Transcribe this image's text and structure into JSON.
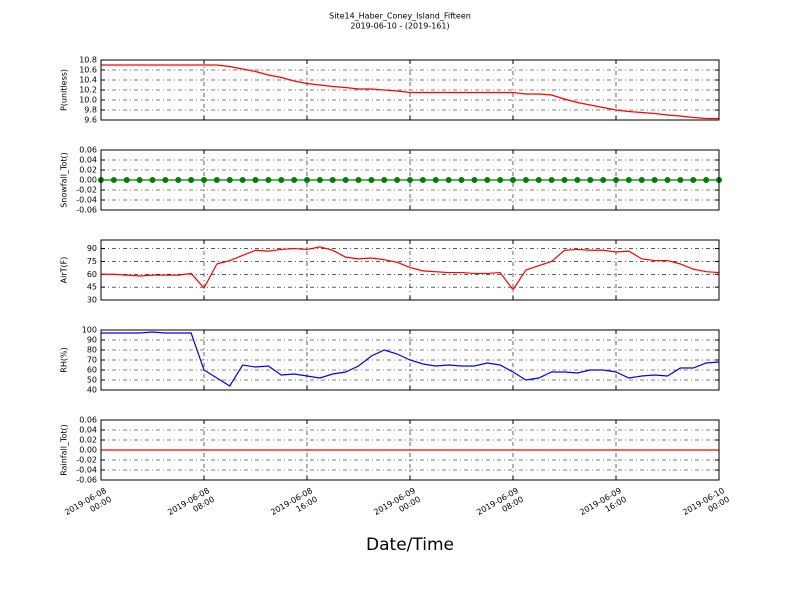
{
  "title": "Site14_Haber_Coney_Island_Fifteen",
  "subtitle": "2019-06-10 - (2019-161)",
  "xlabel": "Date/Time",
  "chart_data": [
    {
      "type": "line",
      "ylabel": "P(unitless)",
      "grid": true,
      "x": [
        "2019-06-08 00:00",
        "2019-06-08 01:00",
        "2019-06-08 02:00",
        "2019-06-08 03:00",
        "2019-06-08 04:00",
        "2019-06-08 05:00",
        "2019-06-08 06:00",
        "2019-06-08 07:00",
        "2019-06-08 08:00",
        "2019-06-08 09:00",
        "2019-06-08 10:00",
        "2019-06-08 11:00",
        "2019-06-08 12:00",
        "2019-06-08 13:00",
        "2019-06-08 14:00",
        "2019-06-08 15:00",
        "2019-06-08 16:00",
        "2019-06-08 17:00",
        "2019-06-08 18:00",
        "2019-06-08 19:00",
        "2019-06-08 20:00",
        "2019-06-08 21:00",
        "2019-06-08 22:00",
        "2019-06-08 23:00",
        "2019-06-09 00:00",
        "2019-06-09 01:00",
        "2019-06-09 02:00",
        "2019-06-09 03:00",
        "2019-06-09 04:00",
        "2019-06-09 05:00",
        "2019-06-09 06:00",
        "2019-06-09 07:00",
        "2019-06-09 08:00",
        "2019-06-09 09:00",
        "2019-06-09 10:00",
        "2019-06-09 11:00",
        "2019-06-09 12:00",
        "2019-06-09 13:00",
        "2019-06-09 14:00",
        "2019-06-09 15:00",
        "2019-06-09 16:00",
        "2019-06-09 17:00",
        "2019-06-09 18:00",
        "2019-06-09 19:00",
        "2019-06-09 20:00",
        "2019-06-09 21:00",
        "2019-06-09 22:00",
        "2019-06-09 23:00",
        "2019-06-10 00:00"
      ],
      "series": [
        {
          "color": "#ff0000",
          "values": [
            10.7,
            10.7,
            10.7,
            10.7,
            10.7,
            10.7,
            10.7,
            10.7,
            10.7,
            10.7,
            10.67,
            10.62,
            10.57,
            10.5,
            10.45,
            10.38,
            10.33,
            10.3,
            10.27,
            10.25,
            10.22,
            10.22,
            10.2,
            10.18,
            10.15,
            10.15,
            10.15,
            10.15,
            10.15,
            10.15,
            10.15,
            10.15,
            10.15,
            10.12,
            10.12,
            10.1,
            10.02,
            9.95,
            9.9,
            9.85,
            9.8,
            9.77,
            9.75,
            9.73,
            9.7,
            9.68,
            9.65,
            9.63,
            9.63
          ]
        }
      ],
      "xlim": [
        "2019-06-08 00:00",
        "2019-06-10 00:00"
      ],
      "xticks": [
        "2019-06-08 00:00",
        "2019-06-08 08:00",
        "2019-06-08 16:00",
        "2019-06-09 00:00",
        "2019-06-09 08:00",
        "2019-06-09 16:00",
        "2019-06-10 00:00"
      ],
      "ylim": [
        9.6,
        10.8
      ],
      "yticks": [
        9.6,
        9.8,
        {
          "value": 10,
          "label": "10.0"
        },
        10.2,
        10.4,
        10.6,
        10.8
      ]
    },
    {
      "type": "line",
      "ylabel": "Snowfall_Tot()",
      "grid": true,
      "marker": "circle",
      "x": [
        "2019-06-08 00:00",
        "2019-06-08 01:00",
        "2019-06-08 02:00",
        "2019-06-08 03:00",
        "2019-06-08 04:00",
        "2019-06-08 05:00",
        "2019-06-08 06:00",
        "2019-06-08 07:00",
        "2019-06-08 08:00",
        "2019-06-08 09:00",
        "2019-06-08 10:00",
        "2019-06-08 11:00",
        "2019-06-08 12:00",
        "2019-06-08 13:00",
        "2019-06-08 14:00",
        "2019-06-08 15:00",
        "2019-06-08 16:00",
        "2019-06-08 17:00",
        "2019-06-08 18:00",
        "2019-06-08 19:00",
        "2019-06-08 20:00",
        "2019-06-08 21:00",
        "2019-06-08 22:00",
        "2019-06-08 23:00",
        "2019-06-09 00:00",
        "2019-06-09 01:00",
        "2019-06-09 02:00",
        "2019-06-09 03:00",
        "2019-06-09 04:00",
        "2019-06-09 05:00",
        "2019-06-09 06:00",
        "2019-06-09 07:00",
        "2019-06-09 08:00",
        "2019-06-09 09:00",
        "2019-06-09 10:00",
        "2019-06-09 11:00",
        "2019-06-09 12:00",
        "2019-06-09 13:00",
        "2019-06-09 14:00",
        "2019-06-09 15:00",
        "2019-06-09 16:00",
        "2019-06-09 17:00",
        "2019-06-09 18:00",
        "2019-06-09 19:00",
        "2019-06-09 20:00",
        "2019-06-09 21:00",
        "2019-06-09 22:00",
        "2019-06-09 23:00",
        "2019-06-10 00:00"
      ],
      "series": [
        {
          "color": "#007f00",
          "values": [
            0,
            0,
            0,
            0,
            0,
            0,
            0,
            0,
            0,
            0,
            0,
            0,
            0,
            0,
            0,
            0,
            0,
            0,
            0,
            0,
            0,
            0,
            0,
            0,
            0,
            0,
            0,
            0,
            0,
            0,
            0,
            0,
            0,
            0,
            0,
            0,
            0,
            0,
            0,
            0,
            0,
            0,
            0,
            0,
            0,
            0,
            0,
            0,
            0
          ]
        }
      ],
      "xlim": [
        "2019-06-08 00:00",
        "2019-06-10 00:00"
      ],
      "xticks": [
        "2019-06-08 00:00",
        "2019-06-08 08:00",
        "2019-06-08 16:00",
        "2019-06-09 00:00",
        "2019-06-09 08:00",
        "2019-06-09 16:00",
        "2019-06-10 00:00"
      ],
      "ylim": [
        -0.06,
        0.06
      ],
      "yticks": [
        -0.06,
        -0.04,
        -0.02,
        {
          "value": 0,
          "label": "0.00"
        },
        0.02,
        0.04,
        0.06
      ]
    },
    {
      "type": "line",
      "ylabel": "AirT(F)",
      "grid": true,
      "x": [
        "2019-06-08 00:00",
        "2019-06-08 01:00",
        "2019-06-08 02:00",
        "2019-06-08 03:00",
        "2019-06-08 04:00",
        "2019-06-08 05:00",
        "2019-06-08 06:00",
        "2019-06-08 07:00",
        "2019-06-08 08:00",
        "2019-06-08 09:00",
        "2019-06-08 10:00",
        "2019-06-08 11:00",
        "2019-06-08 12:00",
        "2019-06-08 13:00",
        "2019-06-08 14:00",
        "2019-06-08 15:00",
        "2019-06-08 16:00",
        "2019-06-08 17:00",
        "2019-06-08 18:00",
        "2019-06-08 19:00",
        "2019-06-08 20:00",
        "2019-06-08 21:00",
        "2019-06-08 22:00",
        "2019-06-08 23:00",
        "2019-06-09 00:00",
        "2019-06-09 01:00",
        "2019-06-09 02:00",
        "2019-06-09 03:00",
        "2019-06-09 04:00",
        "2019-06-09 05:00",
        "2019-06-09 06:00",
        "2019-06-09 07:00",
        "2019-06-09 08:00",
        "2019-06-09 09:00",
        "2019-06-09 10:00",
        "2019-06-09 11:00",
        "2019-06-09 12:00",
        "2019-06-09 13:00",
        "2019-06-09 14:00",
        "2019-06-09 15:00",
        "2019-06-09 16:00",
        "2019-06-09 17:00",
        "2019-06-09 18:00",
        "2019-06-09 19:00",
        "2019-06-09 20:00",
        "2019-06-09 21:00",
        "2019-06-09 22:00",
        "2019-06-09 23:00",
        "2019-06-10 00:00"
      ],
      "series": [
        {
          "color": "#ff0000",
          "values": [
            60,
            60,
            59,
            58,
            59,
            59,
            59,
            61,
            44,
            72,
            76,
            82,
            88,
            87,
            89,
            90,
            89,
            92,
            88,
            80,
            78,
            79,
            77,
            74,
            68,
            64,
            63,
            62,
            62,
            61,
            61,
            62,
            42,
            65,
            70,
            75,
            88,
            89,
            88,
            88,
            86,
            87,
            78,
            76,
            76,
            72,
            66,
            63,
            62
          ]
        }
      ],
      "xlim": [
        "2019-06-08 00:00",
        "2019-06-10 00:00"
      ],
      "xticks": [
        "2019-06-08 00:00",
        "2019-06-08 08:00",
        "2019-06-08 16:00",
        "2019-06-09 00:00",
        "2019-06-09 08:00",
        "2019-06-09 16:00",
        "2019-06-10 00:00"
      ],
      "ylim": [
        30,
        100
      ],
      "yticks": [
        30,
        45,
        60,
        75,
        90
      ]
    },
    {
      "type": "line",
      "ylabel": "RH(%)",
      "grid": true,
      "x": [
        "2019-06-08 00:00",
        "2019-06-08 01:00",
        "2019-06-08 02:00",
        "2019-06-08 03:00",
        "2019-06-08 04:00",
        "2019-06-08 05:00",
        "2019-06-08 06:00",
        "2019-06-08 07:00",
        "2019-06-08 08:00",
        "2019-06-08 09:00",
        "2019-06-08 10:00",
        "2019-06-08 11:00",
        "2019-06-08 12:00",
        "2019-06-08 13:00",
        "2019-06-08 14:00",
        "2019-06-08 15:00",
        "2019-06-08 16:00",
        "2019-06-08 17:00",
        "2019-06-08 18:00",
        "2019-06-08 19:00",
        "2019-06-08 20:00",
        "2019-06-08 21:00",
        "2019-06-08 22:00",
        "2019-06-08 23:00",
        "2019-06-09 00:00",
        "2019-06-09 01:00",
        "2019-06-09 02:00",
        "2019-06-09 03:00",
        "2019-06-09 04:00",
        "2019-06-09 05:00",
        "2019-06-09 06:00",
        "2019-06-09 07:00",
        "2019-06-09 08:00",
        "2019-06-09 09:00",
        "2019-06-09 10:00",
        "2019-06-09 11:00",
        "2019-06-09 12:00",
        "2019-06-09 13:00",
        "2019-06-09 14:00",
        "2019-06-09 15:00",
        "2019-06-09 16:00",
        "2019-06-09 17:00",
        "2019-06-09 18:00",
        "2019-06-09 19:00",
        "2019-06-09 20:00",
        "2019-06-09 21:00",
        "2019-06-09 22:00",
        "2019-06-09 23:00",
        "2019-06-10 00:00"
      ],
      "series": [
        {
          "color": "#0000ff",
          "values": [
            97,
            97,
            97,
            97,
            98,
            97,
            97,
            97,
            60,
            52,
            44,
            65,
            63,
            64,
            55,
            56,
            54,
            52,
            56,
            58,
            64,
            74,
            80,
            76,
            70,
            66,
            64,
            65,
            64,
            64,
            67,
            65,
            58,
            50,
            52,
            58,
            58,
            57,
            60,
            60,
            58,
            52,
            54,
            55,
            54,
            62,
            62,
            67,
            68
          ]
        }
      ],
      "xlim": [
        "2019-06-08 00:00",
        "2019-06-10 00:00"
      ],
      "xticks": [
        "2019-06-08 00:00",
        "2019-06-08 08:00",
        "2019-06-08 16:00",
        "2019-06-09 00:00",
        "2019-06-09 08:00",
        "2019-06-09 16:00",
        "2019-06-10 00:00"
      ],
      "ylim": [
        40,
        100
      ],
      "yticks": [
        40,
        50,
        60,
        70,
        80,
        90,
        100
      ]
    },
    {
      "type": "line",
      "ylabel": "Rainfall_Tot()",
      "grid": true,
      "x": [
        "2019-06-08 00:00",
        "2019-06-08 01:00",
        "2019-06-08 02:00",
        "2019-06-08 03:00",
        "2019-06-08 04:00",
        "2019-06-08 05:00",
        "2019-06-08 06:00",
        "2019-06-08 07:00",
        "2019-06-08 08:00",
        "2019-06-08 09:00",
        "2019-06-08 10:00",
        "2019-06-08 11:00",
        "2019-06-08 12:00",
        "2019-06-08 13:00",
        "2019-06-08 14:00",
        "2019-06-08 15:00",
        "2019-06-08 16:00",
        "2019-06-08 17:00",
        "2019-06-08 18:00",
        "2019-06-08 19:00",
        "2019-06-08 20:00",
        "2019-06-08 21:00",
        "2019-06-08 22:00",
        "2019-06-08 23:00",
        "2019-06-09 00:00",
        "2019-06-09 01:00",
        "2019-06-09 02:00",
        "2019-06-09 03:00",
        "2019-06-09 04:00",
        "2019-06-09 05:00",
        "2019-06-09 06:00",
        "2019-06-09 07:00",
        "2019-06-09 08:00",
        "2019-06-09 09:00",
        "2019-06-09 10:00",
        "2019-06-09 11:00",
        "2019-06-09 12:00",
        "2019-06-09 13:00",
        "2019-06-09 14:00",
        "2019-06-09 15:00",
        "2019-06-09 16:00",
        "2019-06-09 17:00",
        "2019-06-09 18:00",
        "2019-06-09 19:00",
        "2019-06-09 20:00",
        "2019-06-09 21:00",
        "2019-06-09 22:00",
        "2019-06-09 23:00",
        "2019-06-10 00:00"
      ],
      "series": [
        {
          "color": "#ff0000",
          "values": [
            0,
            0,
            0,
            0,
            0,
            0,
            0,
            0,
            0,
            0,
            0,
            0,
            0,
            0,
            0,
            0,
            0,
            0,
            0,
            0,
            0,
            0,
            0,
            0,
            0,
            0,
            0,
            0,
            0,
            0,
            0,
            0,
            0,
            0,
            0,
            0,
            0,
            0,
            0,
            0,
            0,
            0,
            0,
            0,
            0,
            0,
            0,
            0,
            0
          ]
        }
      ],
      "xlim": [
        "2019-06-08 00:00",
        "2019-06-10 00:00"
      ],
      "xticks": [
        "2019-06-08 00:00",
        "2019-06-08 08:00",
        "2019-06-08 16:00",
        "2019-06-09 00:00",
        "2019-06-09 08:00",
        "2019-06-09 16:00",
        "2019-06-10 00:00"
      ],
      "xtick_labels": true,
      "ylim": [
        -0.06,
        0.06
      ],
      "yticks": [
        -0.06,
        -0.04,
        -0.02,
        {
          "value": 0,
          "label": "0.00"
        },
        0.02,
        0.04,
        0.06
      ]
    }
  ]
}
